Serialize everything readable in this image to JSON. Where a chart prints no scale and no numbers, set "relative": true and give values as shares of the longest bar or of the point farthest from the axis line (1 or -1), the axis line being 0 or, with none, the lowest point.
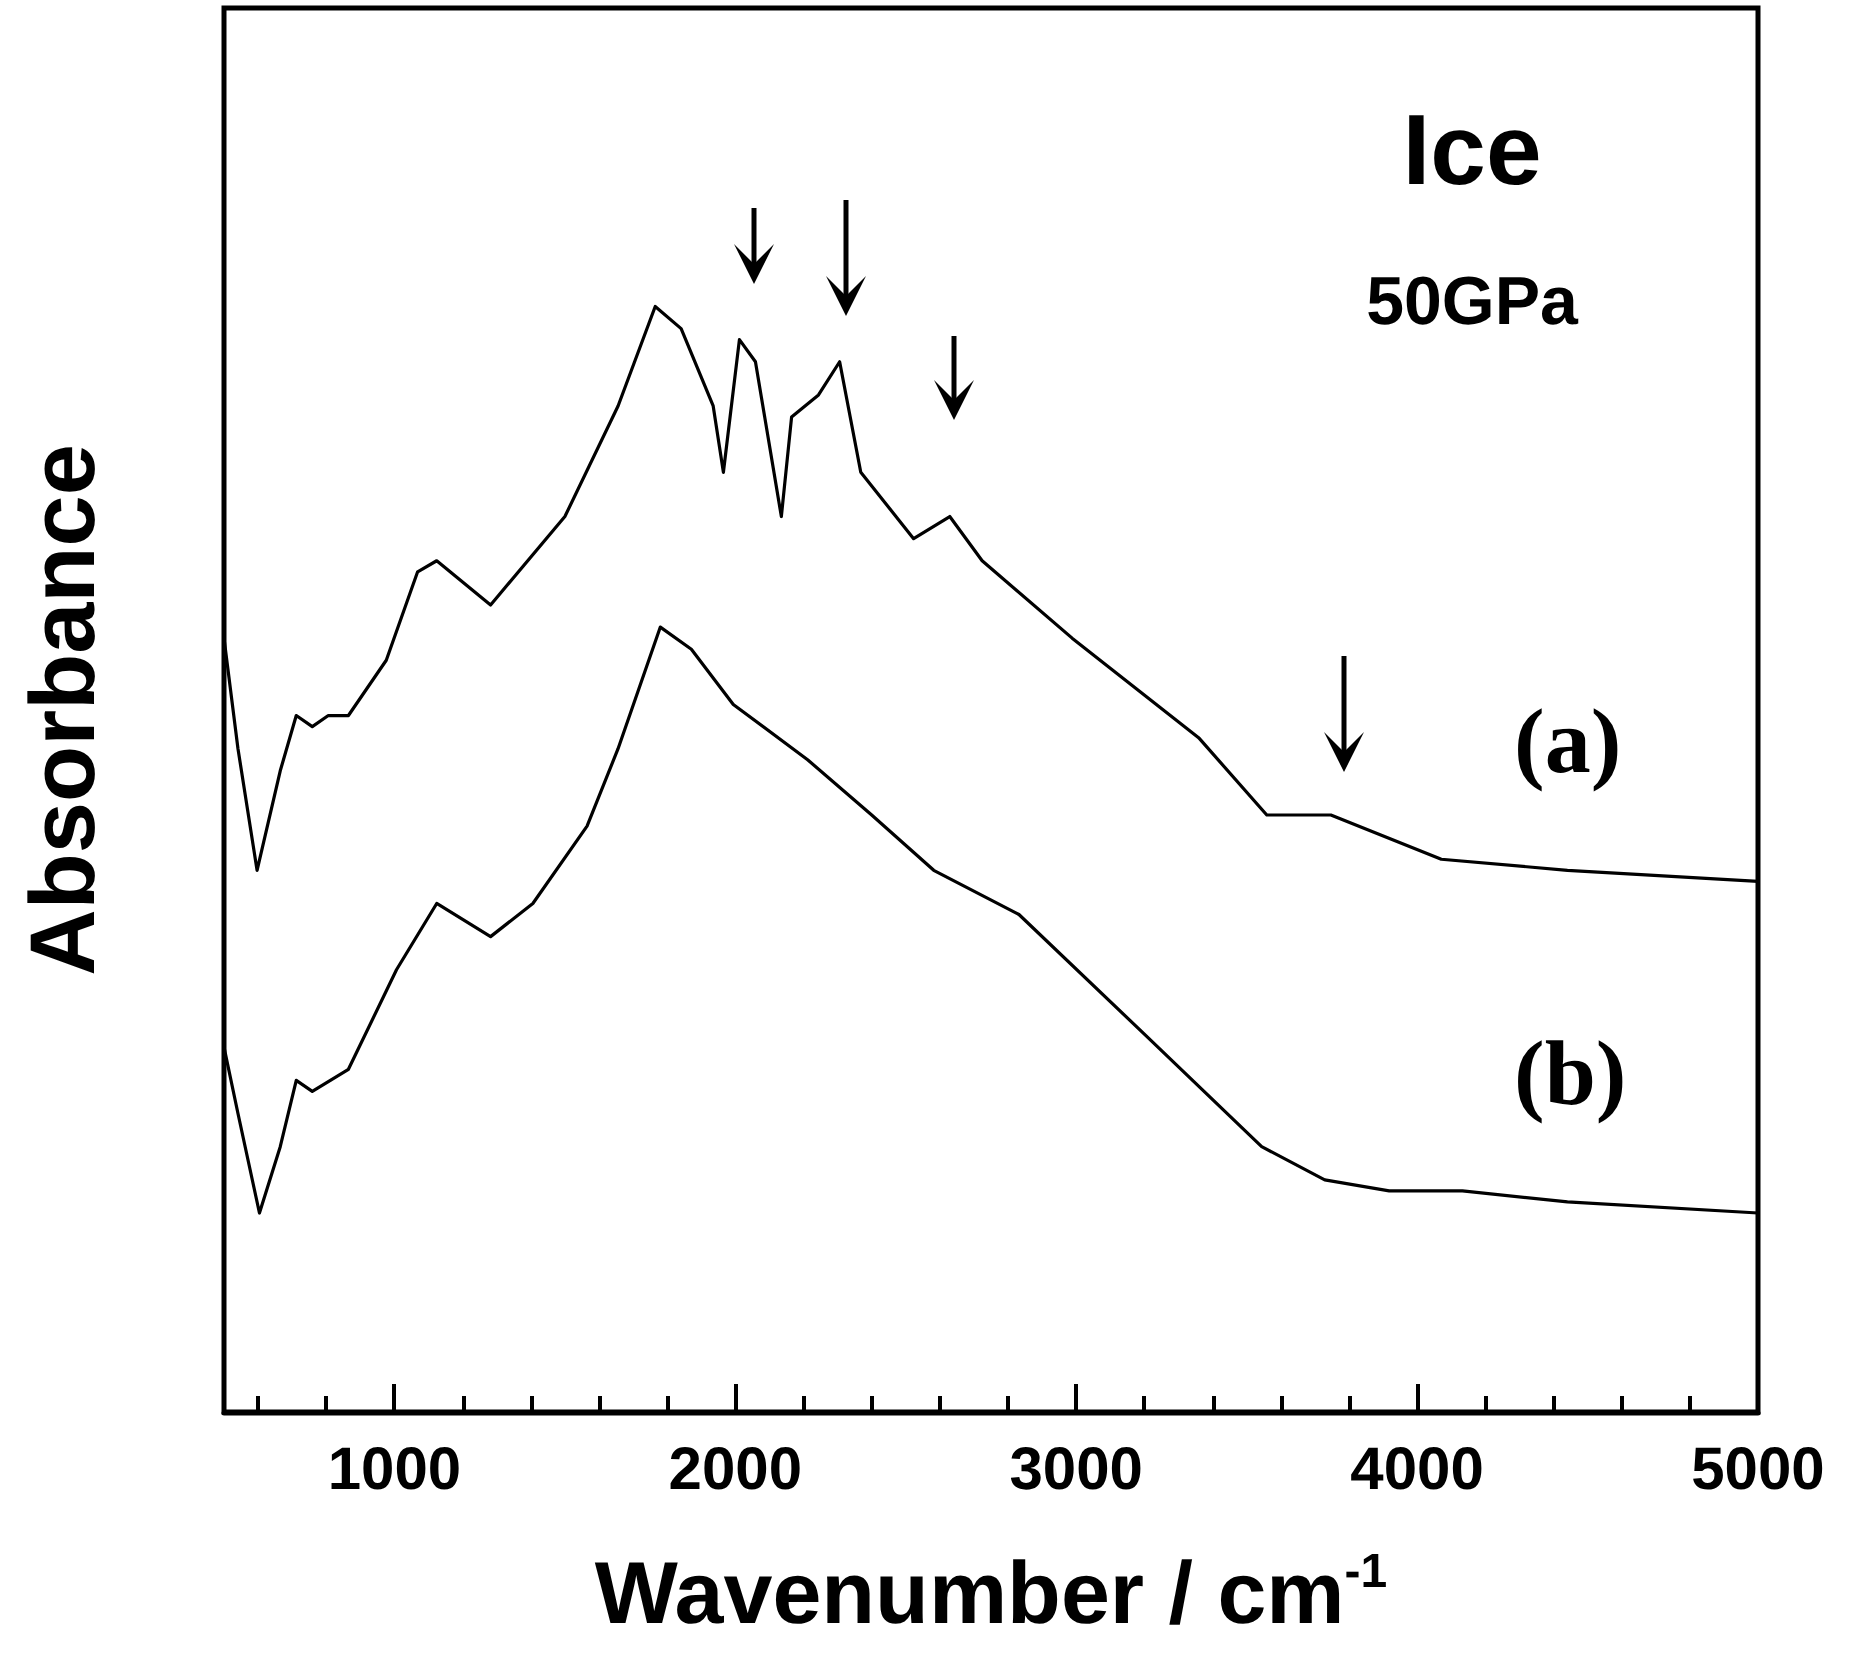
{
  "chart_data": {
    "type": "line",
    "relative": true,
    "xlabel": "Wavenumber / cm$^{-1}$",
    "ylabel": "Absorbance",
    "annotations": [
      "Ice",
      "50GPa"
    ],
    "xlim": [
      500,
      5000
    ],
    "xticks": [
      {
        "value": 600,
        "label": null
      },
      {
        "value": 800,
        "label": null
      },
      1000,
      {
        "value": 1200,
        "label": null
      },
      {
        "value": 1400,
        "label": null
      },
      {
        "value": 1600,
        "label": null
      },
      {
        "value": 1800,
        "label": null
      },
      2000,
      {
        "value": 2200,
        "label": null
      },
      {
        "value": 2400,
        "label": null
      },
      {
        "value": 2600,
        "label": null
      },
      {
        "value": 2800,
        "label": null
      },
      3000,
      {
        "value": 3200,
        "label": null
      },
      {
        "value": 3400,
        "label": null
      },
      {
        "value": 3600,
        "label": null
      },
      {
        "value": 3800,
        "label": null
      },
      4000,
      {
        "value": 4200,
        "label": null
      },
      {
        "value": 4400,
        "label": null
      },
      {
        "value": 4600,
        "label": null
      },
      {
        "value": 4800,
        "label": null
      },
      5000
    ],
    "grid": false,
    "legend": "right",
    "marker": "none",
    "line_style": "solid",
    "series": [
      {
        "name": "(a)",
        "color": "#000000",
        "x": [
          500,
          541,
          597,
          665,
          712,
          759,
          806,
          865,
          976,
          1068,
          1124,
          1282,
          1500,
          1656,
          1765,
          1841,
          1935,
          1965,
          2012,
          2059,
          2135,
          2165,
          2244,
          2306,
          2368,
          2523,
          2629,
          2724,
          2988,
          3359,
          3559,
          3747,
          4071,
          4441,
          5000
        ],
        "values": [
          0.7,
          0.6,
          0.49,
          0.58,
          0.63,
          0.62,
          0.63,
          0.63,
          0.68,
          0.76,
          0.77,
          0.73,
          0.81,
          0.91,
          1.0,
          0.98,
          0.91,
          0.85,
          0.97,
          0.95,
          0.81,
          0.9,
          0.92,
          0.95,
          0.85,
          0.79,
          0.81,
          0.77,
          0.7,
          0.61,
          0.54,
          0.54,
          0.5,
          0.49,
          0.48
        ]
      },
      {
        "name": "(b)",
        "color": "#000000",
        "x": [
          500,
          541,
          604,
          665,
          712,
          759,
          865,
          1006,
          1124,
          1282,
          1406,
          1565,
          1656,
          1780,
          1871,
          1994,
          2212,
          2400,
          2582,
          2832,
          3206,
          3544,
          3729,
          3918,
          4133,
          4441,
          5000
        ],
        "values": [
          0.33,
          0.27,
          0.18,
          0.24,
          0.3,
          0.29,
          0.31,
          0.4,
          0.46,
          0.43,
          0.46,
          0.53,
          0.6,
          0.71,
          0.69,
          0.64,
          0.59,
          0.54,
          0.49,
          0.45,
          0.34,
          0.24,
          0.21,
          0.2,
          0.2,
          0.19,
          0.18
        ]
      }
    ]
  }
}
